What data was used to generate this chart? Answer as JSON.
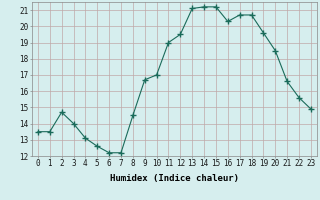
{
  "x": [
    0,
    1,
    2,
    3,
    4,
    5,
    6,
    7,
    8,
    9,
    10,
    11,
    12,
    13,
    14,
    15,
    16,
    17,
    18,
    19,
    20,
    21,
    22,
    23
  ],
  "y": [
    13.5,
    13.5,
    14.7,
    14.0,
    13.1,
    12.6,
    12.2,
    12.2,
    14.5,
    16.7,
    17.0,
    19.0,
    19.5,
    21.1,
    21.2,
    21.2,
    20.3,
    20.7,
    20.7,
    19.6,
    18.5,
    16.6,
    15.6,
    14.9
  ],
  "line_color": "#1a6b5a",
  "marker": "+",
  "marker_size": 4,
  "bg_color": "#d6eeee",
  "grid_color": "#c0a8a8",
  "xlabel": "Humidex (Indice chaleur)",
  "ylim": [
    12,
    21.5
  ],
  "xlim": [
    -0.5,
    23.5
  ],
  "yticks": [
    12,
    13,
    14,
    15,
    16,
    17,
    18,
    19,
    20,
    21
  ],
  "xticks": [
    0,
    1,
    2,
    3,
    4,
    5,
    6,
    7,
    8,
    9,
    10,
    11,
    12,
    13,
    14,
    15,
    16,
    17,
    18,
    19,
    20,
    21,
    22,
    23
  ],
  "xtick_labels": [
    "0",
    "1",
    "2",
    "3",
    "4",
    "5",
    "6",
    "7",
    "8",
    "9",
    "10",
    "11",
    "12",
    "13",
    "14",
    "15",
    "16",
    "17",
    "18",
    "19",
    "20",
    "21",
    "22",
    "23"
  ],
  "label_fontsize": 6.5,
  "tick_fontsize": 5.5
}
